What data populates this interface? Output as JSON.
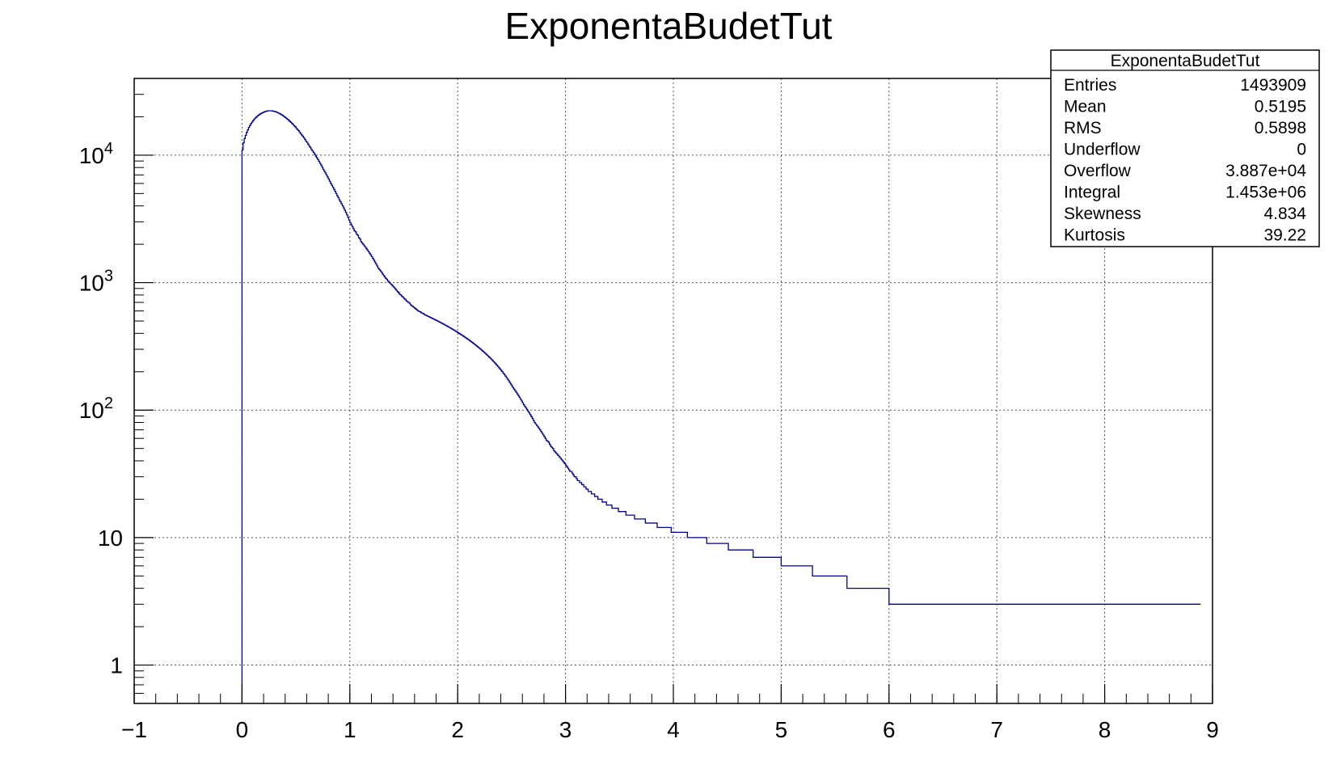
{
  "chart_data": {
    "type": "histogram",
    "title": "ExponentaBudetTut",
    "xlabel": "",
    "ylabel": "",
    "xlim": [
      -1,
      9
    ],
    "ylim": [
      0.5,
      40000
    ],
    "y_scale": "log",
    "grid": true,
    "line_color": "#00008b",
    "x_ticks": [
      "−1",
      "0",
      "1",
      "2",
      "3",
      "4",
      "5",
      "6",
      "7",
      "8",
      "9"
    ],
    "y_ticks": [
      {
        "value": 1,
        "base": "1",
        "exp": ""
      },
      {
        "value": 10,
        "base": "10",
        "exp": ""
      },
      {
        "value": 100,
        "base": "10",
        "exp": "2"
      },
      {
        "value": 1000,
        "base": "10",
        "exp": "3"
      },
      {
        "value": 10000,
        "base": "10",
        "exp": "4"
      }
    ],
    "bin_width": 0.01,
    "series": [
      {
        "x_start": 0.0,
        "values": [
          11000,
          12500,
          13500,
          14300,
          15100,
          15800,
          16500,
          17100,
          17700,
          18200,
          18700,
          19200,
          19600,
          19900,
          20300,
          20600,
          20900,
          21200,
          21400,
          21600,
          21800,
          22000,
          22100,
          22200,
          22300,
          22300,
          22300,
          22300,
          22200,
          22100,
          22000,
          21900,
          21700,
          21500,
          21300,
          21100,
          20800,
          20600,
          20300,
          20000,
          19700,
          19400,
          19100,
          18800,
          18400,
          18100,
          17700,
          17400,
          17000,
          16700,
          16300,
          15900,
          15600,
          15200,
          14800,
          14400,
          14100,
          13700,
          13300,
          12900,
          12600,
          12200,
          11800,
          11500,
          11100,
          10800,
          10500,
          10200,
          9850,
          9550,
          9250,
          8950,
          8650,
          8350,
          8050,
          7750,
          7500,
          7250,
          7000,
          6750,
          6500,
          6250,
          6000,
          5800,
          5600,
          5400,
          5200,
          5000,
          4800,
          4650,
          4450,
          4300,
          4150,
          4000,
          3850,
          3700,
          3550,
          3400,
          3250,
          3100,
          2950,
          2850,
          2750,
          2650,
          2550,
          2500,
          2400,
          2350,
          2250,
          2200,
          2100,
          2050,
          2000,
          1950,
          1900,
          1850,
          1800,
          1750,
          1700,
          1650,
          1600,
          1550,
          1500,
          1450,
          1400,
          1350,
          1300,
          1270,
          1240,
          1210,
          1170,
          1140,
          1110,
          1080,
          1060,
          1030,
          1010,
          990,
          970,
          950,
          930,
          910,
          890,
          870,
          850,
          830,
          810,
          800,
          780,
          770,
          750,
          740,
          720,
          710,
          700,
          690,
          670,
          660,
          650,
          640,
          630,
          620,
          610,
          600,
          595,
          590,
          580,
          575,
          570,
          560,
          555,
          550,
          545,
          540,
          535,
          530,
          525,
          520,
          515,
          510,
          505,
          500,
          495,
          490,
          485,
          480,
          475,
          470,
          465,
          460,
          455,
          450,
          445,
          440,
          435,
          430,
          425,
          420,
          415,
          410,
          405,
          400,
          395,
          390,
          385,
          380,
          375,
          370,
          365,
          360,
          355,
          350,
          345,
          340,
          335,
          330,
          325,
          320,
          315,
          310,
          305,
          300,
          295,
          290,
          285,
          280,
          275,
          270,
          265,
          260,
          255,
          250,
          245,
          240,
          235,
          230,
          225,
          220,
          215,
          210,
          205,
          200,
          195,
          190,
          185,
          180,
          175,
          170,
          165,
          160,
          155,
          150,
          146,
          142,
          138,
          134,
          130,
          126,
          122,
          118,
          114,
          110,
          107,
          104,
          101,
          98,
          95,
          92,
          89,
          86,
          83,
          80,
          78,
          76,
          74,
          72,
          70,
          68,
          66,
          64,
          62,
          60,
          58,
          57,
          56,
          54,
          52,
          51,
          50,
          48,
          47,
          46,
          45,
          44,
          43,
          42,
          41,
          40,
          39,
          38,
          37,
          36,
          35,
          34,
          33,
          33,
          32,
          31,
          30,
          30,
          29,
          28,
          28,
          27,
          27,
          26,
          26,
          25,
          25,
          24,
          24,
          23,
          23,
          23,
          22,
          22,
          22,
          21,
          21,
          21,
          20,
          20,
          20,
          20,
          19,
          19,
          19,
          19,
          18,
          18,
          18,
          18,
          18,
          17,
          17,
          17,
          17,
          17,
          17,
          16,
          16,
          16,
          16,
          16,
          16,
          16,
          15,
          15,
          15,
          15,
          15,
          15,
          15,
          15,
          14,
          14,
          14,
          14,
          14,
          14,
          14,
          14,
          14,
          14,
          13,
          13,
          13,
          13,
          13,
          13,
          13,
          13,
          13,
          13,
          13,
          12,
          12,
          12,
          12,
          12,
          12,
          12,
          12,
          12,
          12,
          12,
          12,
          12,
          11,
          11,
          11,
          11,
          11,
          11,
          11,
          11,
          11,
          11,
          11,
          11,
          11,
          11,
          11,
          10,
          10,
          10,
          10,
          10,
          10,
          10,
          10,
          10,
          10,
          10,
          10,
          10,
          10,
          10,
          10,
          10,
          10,
          9,
          9,
          9,
          9,
          9,
          9,
          9,
          9,
          9,
          9,
          9,
          9,
          9,
          9,
          9,
          9,
          9,
          9,
          9,
          9,
          8,
          8,
          8,
          8,
          8,
          8,
          8,
          8,
          8,
          8,
          8,
          8,
          8,
          8,
          8,
          8,
          8,
          8,
          8,
          8,
          8,
          8,
          8,
          7,
          7,
          7,
          7,
          7,
          7,
          7,
          7,
          7,
          7,
          7,
          7,
          7,
          7,
          7,
          7,
          7,
          7,
          7,
          7,
          7,
          7,
          7,
          7,
          7,
          7,
          6,
          6,
          6,
          6,
          6,
          6,
          6,
          6,
          6,
          6,
          6,
          6,
          6,
          6,
          6,
          6,
          6,
          6,
          6,
          6,
          6,
          6,
          6,
          6,
          6,
          6,
          6,
          6,
          6,
          5,
          5,
          5,
          5,
          5,
          5,
          5,
          5,
          5,
          5,
          5,
          5,
          5,
          5,
          5,
          5,
          5,
          5,
          5,
          5,
          5,
          5,
          5,
          5,
          5,
          5,
          5,
          5,
          5,
          5,
          5,
          5,
          4,
          4,
          4,
          4,
          4,
          4,
          4,
          4,
          4,
          4,
          4,
          4,
          4,
          4,
          4,
          4,
          4,
          4,
          4,
          4,
          4,
          4,
          4,
          4,
          4,
          4,
          4,
          4,
          4,
          4,
          4,
          4,
          4,
          4,
          4,
          4,
          4,
          4,
          4,
          3,
          3,
          3,
          3,
          3,
          3,
          3,
          3,
          3,
          3,
          3,
          3,
          3,
          3,
          3,
          3,
          3,
          3,
          3,
          3,
          3,
          3,
          3,
          3,
          3,
          3,
          3,
          3,
          3,
          3,
          3,
          3,
          3,
          3,
          3,
          3,
          3,
          3,
          3,
          3,
          3,
          3,
          3,
          3,
          3,
          3,
          3,
          3,
          3,
          3,
          3,
          3,
          3,
          3,
          3,
          3,
          3,
          3,
          3,
          3,
          3,
          3,
          3,
          3,
          3,
          3,
          3,
          3,
          3,
          3,
          3,
          3,
          3,
          3,
          3,
          3,
          3,
          3,
          3,
          3,
          3,
          3,
          3,
          3,
          3,
          3,
          3,
          3,
          3,
          3,
          3,
          3,
          3,
          3,
          3,
          3,
          3,
          3,
          3,
          3,
          3,
          3,
          3,
          3,
          3,
          3,
          3,
          3,
          3,
          3,
          3,
          3,
          3,
          3,
          3,
          3,
          3,
          3,
          3,
          3,
          3,
          3,
          3,
          3,
          3,
          3,
          3,
          3,
          3,
          3,
          3,
          3,
          3,
          3,
          3,
          3,
          3,
          3,
          3,
          3,
          3,
          3,
          3,
          3,
          3,
          3,
          3,
          3,
          3,
          3,
          3,
          3,
          3,
          3,
          3,
          3,
          3,
          3,
          3,
          3,
          3,
          3,
          3,
          3,
          3,
          3,
          3,
          3,
          3,
          3,
          3,
          3,
          3,
          3,
          3,
          3,
          3,
          3,
          3,
          3,
          3,
          3,
          3,
          3,
          3,
          3,
          3,
          3,
          3,
          3,
          3,
          3,
          3,
          3,
          3,
          3,
          3,
          3,
          3,
          3,
          3,
          3,
          3,
          3,
          3,
          3,
          3,
          3,
          3,
          3,
          3,
          3,
          3,
          3,
          3,
          3,
          3,
          3,
          3,
          3,
          3,
          3,
          3,
          3,
          3,
          3,
          3,
          3,
          3,
          3,
          3,
          3,
          3,
          3,
          3,
          3,
          3,
          3,
          3,
          3,
          3,
          3,
          3,
          3,
          3,
          3,
          3,
          3,
          3,
          3,
          3,
          3,
          3,
          3,
          3,
          3,
          3,
          3,
          3,
          3,
          3,
          3,
          3,
          3,
          3,
          3,
          3,
          3,
          3,
          3,
          3,
          3,
          3,
          3,
          3,
          3,
          3,
          3,
          3,
          3,
          3,
          3,
          3,
          3,
          3,
          3,
          3,
          3,
          3
        ]
      }
    ]
  },
  "stats_box": {
    "title": "ExponentaBudetTut",
    "rows": [
      {
        "label": "Entries",
        "value": "1493909"
      },
      {
        "label": "Mean",
        "value": "0.5195"
      },
      {
        "label": "RMS",
        "value": "0.5898"
      },
      {
        "label": "Underflow",
        "value": "0"
      },
      {
        "label": "Overflow",
        "value": "3.887e+04"
      },
      {
        "label": "Integral",
        "value": "1.453e+06"
      },
      {
        "label": "Skewness",
        "value": "4.834"
      },
      {
        "label": "Kurtosis",
        "value": "39.22"
      }
    ]
  }
}
